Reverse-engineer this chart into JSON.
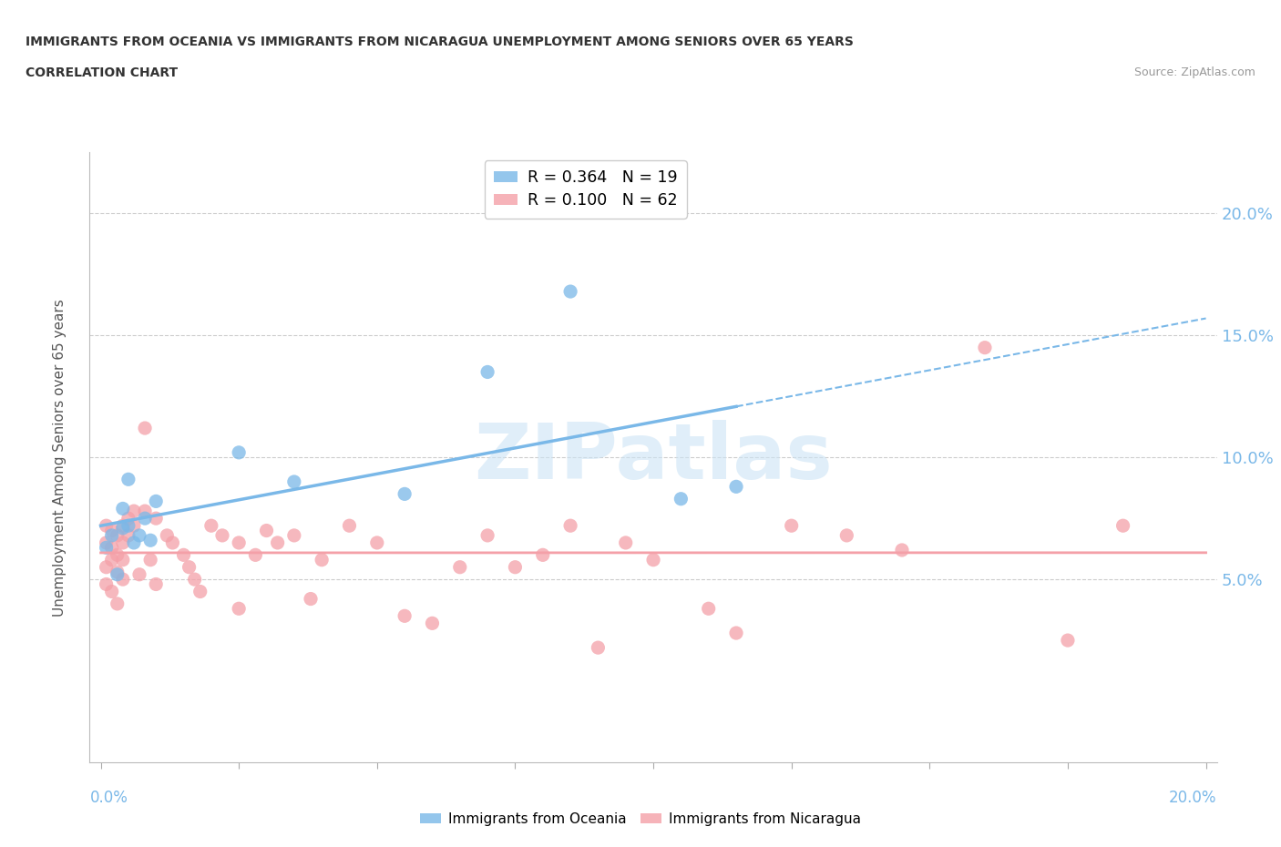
{
  "title_line1": "IMMIGRANTS FROM OCEANIA VS IMMIGRANTS FROM NICARAGUA UNEMPLOYMENT AMONG SENIORS OVER 65 YEARS",
  "title_line2": "CORRELATION CHART",
  "source_text": "Source: ZipAtlas.com",
  "ylabel": "Unemployment Among Seniors over 65 years",
  "y_ticks": [
    0.05,
    0.1,
    0.15,
    0.2
  ],
  "y_tick_labels": [
    "5.0%",
    "10.0%",
    "15.0%",
    "20.0%"
  ],
  "xlim": [
    -0.002,
    0.202
  ],
  "ylim": [
    -0.025,
    0.225
  ],
  "x_ticks": [
    0.0,
    0.025,
    0.05,
    0.075,
    0.1,
    0.125,
    0.15,
    0.175,
    0.2
  ],
  "legend_oceania": "R = 0.364   N = 19",
  "legend_nicaragua": "R = 0.100   N = 62",
  "oceania_color": "#7ab8e8",
  "nicaragua_color": "#f4a0a8",
  "watermark": "ZIPatlas",
  "oceania_scatter_x": [
    0.001,
    0.002,
    0.003,
    0.004,
    0.004,
    0.005,
    0.005,
    0.006,
    0.007,
    0.008,
    0.009,
    0.01,
    0.025,
    0.035,
    0.055,
    0.07,
    0.085,
    0.105,
    0.115
  ],
  "oceania_scatter_y": [
    0.063,
    0.068,
    0.052,
    0.071,
    0.079,
    0.072,
    0.091,
    0.065,
    0.068,
    0.075,
    0.066,
    0.082,
    0.102,
    0.09,
    0.085,
    0.135,
    0.168,
    0.083,
    0.088
  ],
  "nicaragua_scatter_x": [
    0.001,
    0.001,
    0.001,
    0.001,
    0.002,
    0.002,
    0.002,
    0.002,
    0.003,
    0.003,
    0.003,
    0.003,
    0.004,
    0.004,
    0.004,
    0.004,
    0.005,
    0.005,
    0.006,
    0.006,
    0.007,
    0.008,
    0.008,
    0.009,
    0.01,
    0.01,
    0.012,
    0.013,
    0.015,
    0.016,
    0.017,
    0.018,
    0.02,
    0.022,
    0.025,
    0.025,
    0.028,
    0.03,
    0.032,
    0.035,
    0.038,
    0.04,
    0.045,
    0.05,
    0.055,
    0.06,
    0.065,
    0.07,
    0.075,
    0.08,
    0.085,
    0.09,
    0.095,
    0.1,
    0.11,
    0.115,
    0.125,
    0.135,
    0.145,
    0.16,
    0.175,
    0.185
  ],
  "nicaragua_scatter_y": [
    0.072,
    0.065,
    0.055,
    0.048,
    0.07,
    0.063,
    0.058,
    0.045,
    0.068,
    0.06,
    0.053,
    0.04,
    0.072,
    0.065,
    0.058,
    0.05,
    0.075,
    0.068,
    0.078,
    0.072,
    0.052,
    0.112,
    0.078,
    0.058,
    0.075,
    0.048,
    0.068,
    0.065,
    0.06,
    0.055,
    0.05,
    0.045,
    0.072,
    0.068,
    0.065,
    0.038,
    0.06,
    0.07,
    0.065,
    0.068,
    0.042,
    0.058,
    0.072,
    0.065,
    0.035,
    0.032,
    0.055,
    0.068,
    0.055,
    0.06,
    0.072,
    0.022,
    0.065,
    0.058,
    0.038,
    0.028,
    0.072,
    0.068,
    0.062,
    0.145,
    0.025,
    0.072
  ]
}
